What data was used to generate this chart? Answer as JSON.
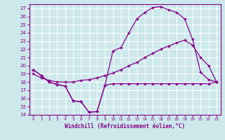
{
  "xlabel": "Windchill (Refroidissement éolien,°C)",
  "bg_color": "#cce8eb",
  "line_color": "#880088",
  "grid_color": "#ffffff",
  "xlim": [
    -0.5,
    23.5
  ],
  "ylim": [
    14,
    27.5
  ],
  "xticks": [
    0,
    1,
    2,
    3,
    4,
    5,
    6,
    7,
    8,
    9,
    10,
    11,
    12,
    13,
    14,
    15,
    16,
    17,
    18,
    19,
    20,
    21,
    22,
    23
  ],
  "yticks": [
    14,
    15,
    16,
    17,
    18,
    19,
    20,
    21,
    22,
    23,
    24,
    25,
    26,
    27
  ],
  "line1_x": [
    0,
    1,
    2,
    3,
    4,
    5,
    6,
    7,
    8,
    9,
    10,
    11,
    12,
    13,
    14,
    15,
    16,
    17,
    18,
    19,
    20,
    21,
    22,
    23
  ],
  "line1_y": [
    19.5,
    18.8,
    18.0,
    17.7,
    17.5,
    15.7,
    15.6,
    14.3,
    14.4,
    17.6,
    17.8,
    17.8,
    17.8,
    17.8,
    17.8,
    17.8,
    17.8,
    17.8,
    17.8,
    17.8,
    17.8,
    17.8,
    17.8,
    18.0
  ],
  "line2_x": [
    0,
    1,
    2,
    3,
    4,
    5,
    6,
    7,
    8,
    9,
    10,
    11,
    12,
    13,
    14,
    15,
    16,
    17,
    18,
    19,
    20,
    21,
    22,
    23
  ],
  "line2_y": [
    19.5,
    18.8,
    18.0,
    17.7,
    17.5,
    15.7,
    15.6,
    14.3,
    14.4,
    17.6,
    21.8,
    22.2,
    24.0,
    25.7,
    26.5,
    27.1,
    27.2,
    26.8,
    26.5,
    25.7,
    23.2,
    19.2,
    18.3,
    18.0
  ],
  "line3_x": [
    0,
    1,
    2,
    3,
    4,
    5,
    6,
    7,
    8,
    9,
    10,
    11,
    12,
    13,
    14,
    15,
    16,
    17,
    18,
    19,
    20,
    21,
    22,
    23
  ],
  "line3_y": [
    19.0,
    18.5,
    18.2,
    18.0,
    18.0,
    18.0,
    18.2,
    18.3,
    18.5,
    18.8,
    19.1,
    19.5,
    20.0,
    20.4,
    21.0,
    21.5,
    22.0,
    22.4,
    22.8,
    23.1,
    22.5,
    21.0,
    20.0,
    18.0
  ]
}
